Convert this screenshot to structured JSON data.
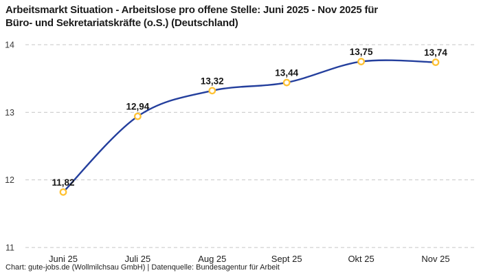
{
  "header": {
    "title_line1": "Arbeitsmarkt Situation - Arbeitslose pro offene Stelle: Juni 2025 - Nov 2025 für",
    "title_line2": "Büro- und Sekretariatskräfte (o.S.) (Deutschland)"
  },
  "footer": {
    "attribution": "Chart: gute-jobs.de (Wollmilchsau GmbH) | Datenquelle: Bundesagentur für Arbeit"
  },
  "chart_data": {
    "type": "line",
    "title": "Arbeitsmarkt Situation - Arbeitslose pro offene Stelle: Juni 2025 - Nov 2025 für Büro- und Sekretariatskräfte (o.S.) (Deutschland)",
    "categories": [
      "Juni 25",
      "Juli 25",
      "Aug 25",
      "Sept 25",
      "Okt 25",
      "Nov 25"
    ],
    "values": [
      11.82,
      12.94,
      13.32,
      13.44,
      13.75,
      13.74
    ],
    "value_labels": [
      "11,82",
      "12,94",
      "13,32",
      "13,44",
      "13,75",
      "13,74"
    ],
    "y_ticks": [
      11,
      12,
      13,
      14
    ],
    "ylim": [
      11,
      14
    ],
    "xlabel": "",
    "ylabel": "",
    "legend": "none",
    "grid": "horizontal-dashed",
    "colors": {
      "line": "#243f9d",
      "marker_ring": "#ffc234",
      "marker_fill": "#ffffff",
      "grid": "#c6c6c6",
      "axis_tick_text": "#3a3a3a",
      "x_label_text": "#1d1d1d",
      "data_label_text": "#141414"
    }
  }
}
